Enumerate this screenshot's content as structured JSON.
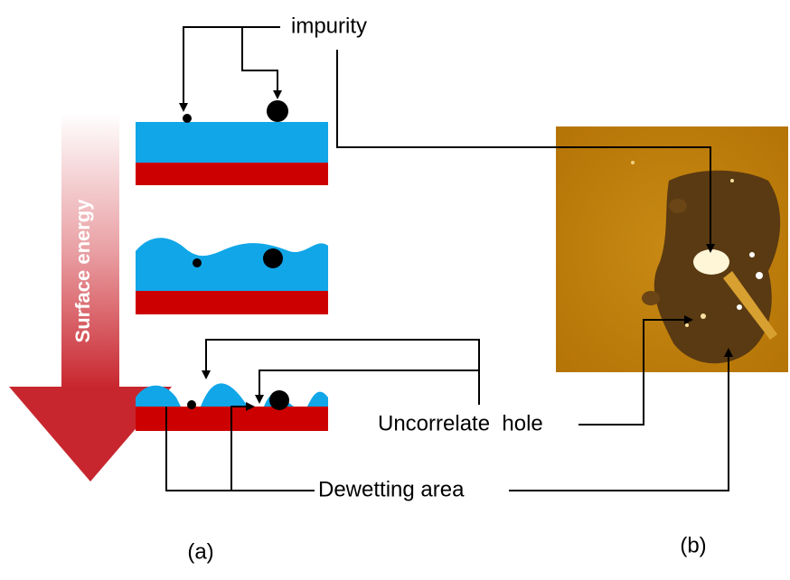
{
  "labels": {
    "impurity": "impurity",
    "surface_energy": "Surface energy",
    "uncorrelate_hole": "Uncorrelate  hole",
    "dewetting_area": "Dewetting area",
    "panel_a": "(a)",
    "panel_b": "(b)"
  }
}
